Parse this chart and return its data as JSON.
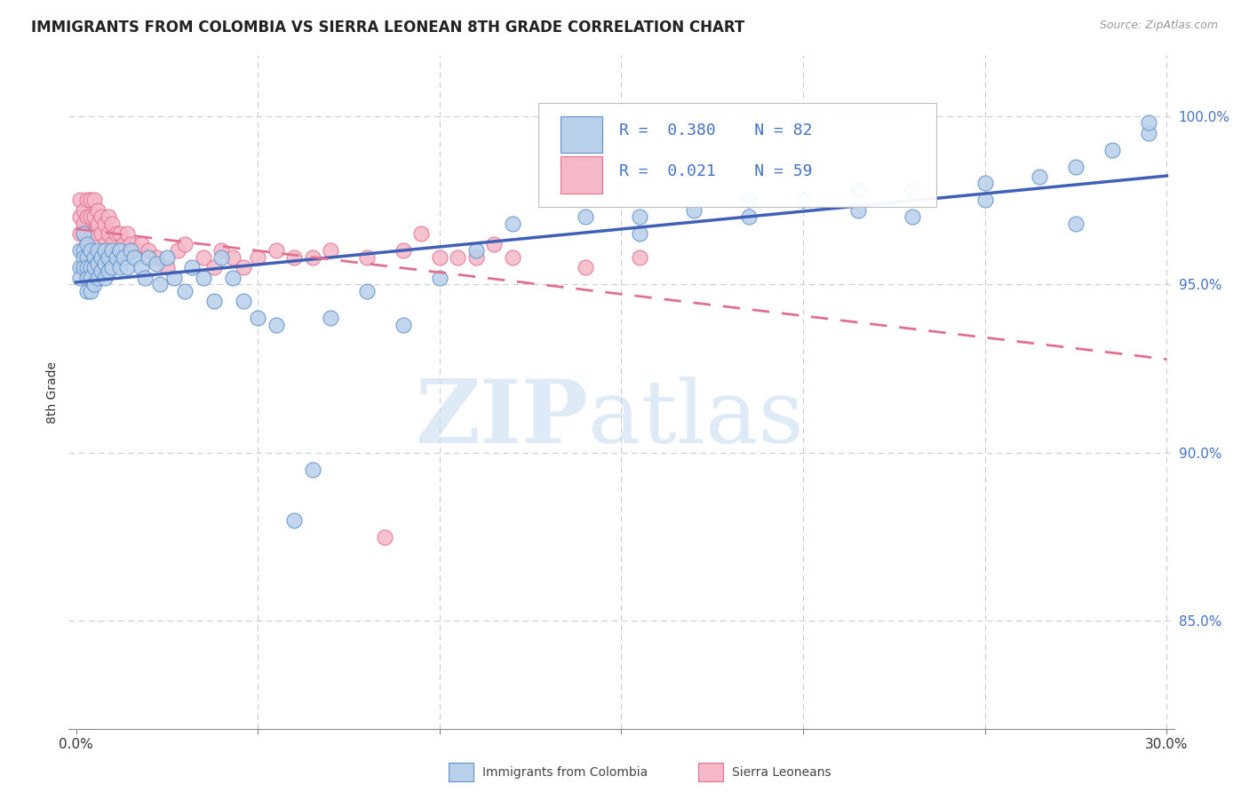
{
  "title": "IMMIGRANTS FROM COLOMBIA VS SIERRA LEONEAN 8TH GRADE CORRELATION CHART",
  "source": "Source: ZipAtlas.com",
  "ylabel": "8th Grade",
  "ytick_values": [
    0.85,
    0.9,
    0.95,
    1.0
  ],
  "ytick_labels": [
    "85.0%",
    "90.0%",
    "95.0%",
    "100.0%"
  ],
  "xlim": [
    -0.002,
    0.302
  ],
  "ylim": [
    0.818,
    1.018
  ],
  "color_colombia": "#b8d0ea",
  "color_colombia_edge": "#6090c8",
  "color_sierra": "#f5b8c8",
  "color_sierra_edge": "#e07090",
  "color_line_colombia": "#4060b8",
  "color_line_sierra": "#e07090",
  "watermark_zip": "ZIP",
  "watermark_atlas": "atlas",
  "colombia_x": [
    0.001,
    0.001,
    0.001,
    0.002,
    0.002,
    0.002,
    0.002,
    0.003,
    0.003,
    0.003,
    0.003,
    0.003,
    0.004,
    0.004,
    0.004,
    0.004,
    0.005,
    0.005,
    0.005,
    0.006,
    0.006,
    0.006,
    0.007,
    0.007,
    0.008,
    0.008,
    0.008,
    0.009,
    0.009,
    0.01,
    0.01,
    0.011,
    0.012,
    0.012,
    0.013,
    0.014,
    0.015,
    0.016,
    0.018,
    0.019,
    0.02,
    0.022,
    0.023,
    0.025,
    0.027,
    0.03,
    0.032,
    0.035,
    0.038,
    0.04,
    0.043,
    0.046,
    0.05,
    0.055,
    0.06,
    0.065,
    0.07,
    0.08,
    0.09,
    0.1,
    0.11,
    0.12,
    0.14,
    0.155,
    0.17,
    0.185,
    0.2,
    0.215,
    0.23,
    0.25,
    0.265,
    0.275,
    0.285,
    0.295,
    0.295,
    0.275,
    0.25,
    0.23,
    0.215,
    0.2,
    0.185,
    0.155
  ],
  "colombia_y": [
    0.96,
    0.955,
    0.952,
    0.965,
    0.96,
    0.958,
    0.955,
    0.962,
    0.958,
    0.955,
    0.952,
    0.948,
    0.96,
    0.955,
    0.952,
    0.948,
    0.958,
    0.955,
    0.95,
    0.96,
    0.956,
    0.952,
    0.958,
    0.954,
    0.96,
    0.956,
    0.952,
    0.958,
    0.954,
    0.96,
    0.955,
    0.958,
    0.96,
    0.955,
    0.958,
    0.955,
    0.96,
    0.958,
    0.955,
    0.952,
    0.958,
    0.956,
    0.95,
    0.958,
    0.952,
    0.948,
    0.955,
    0.952,
    0.945,
    0.958,
    0.952,
    0.945,
    0.94,
    0.938,
    0.88,
    0.895,
    0.94,
    0.948,
    0.938,
    0.952,
    0.96,
    0.968,
    0.97,
    0.97,
    0.972,
    0.975,
    0.975,
    0.978,
    0.978,
    0.98,
    0.982,
    0.985,
    0.99,
    0.995,
    0.998,
    0.968,
    0.975,
    0.97,
    0.972,
    0.975,
    0.97,
    0.965
  ],
  "sierra_x": [
    0.001,
    0.001,
    0.001,
    0.002,
    0.002,
    0.002,
    0.003,
    0.003,
    0.003,
    0.004,
    0.004,
    0.004,
    0.004,
    0.005,
    0.005,
    0.005,
    0.006,
    0.006,
    0.007,
    0.007,
    0.008,
    0.008,
    0.009,
    0.009,
    0.01,
    0.01,
    0.011,
    0.012,
    0.013,
    0.014,
    0.015,
    0.016,
    0.018,
    0.02,
    0.022,
    0.025,
    0.028,
    0.03,
    0.035,
    0.038,
    0.04,
    0.043,
    0.046,
    0.05,
    0.055,
    0.06,
    0.065,
    0.07,
    0.08,
    0.09,
    0.1,
    0.11,
    0.12,
    0.14,
    0.155,
    0.085,
    0.095,
    0.105,
    0.115
  ],
  "sierra_y": [
    0.975,
    0.97,
    0.965,
    0.972,
    0.968,
    0.965,
    0.975,
    0.97,
    0.965,
    0.975,
    0.97,
    0.965,
    0.96,
    0.975,
    0.97,
    0.965,
    0.972,
    0.968,
    0.97,
    0.965,
    0.968,
    0.962,
    0.97,
    0.965,
    0.968,
    0.962,
    0.965,
    0.965,
    0.962,
    0.965,
    0.962,
    0.96,
    0.962,
    0.96,
    0.958,
    0.955,
    0.96,
    0.962,
    0.958,
    0.955,
    0.96,
    0.958,
    0.955,
    0.958,
    0.96,
    0.958,
    0.958,
    0.96,
    0.958,
    0.96,
    0.958,
    0.958,
    0.958,
    0.955,
    0.958,
    0.875,
    0.965,
    0.958,
    0.962
  ]
}
